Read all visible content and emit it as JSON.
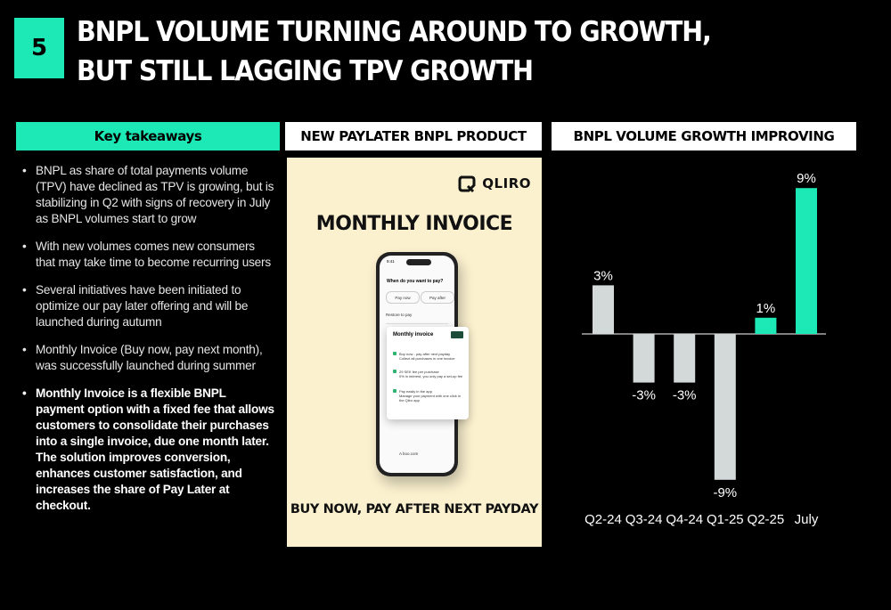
{
  "page": {
    "number": "5",
    "title_line1": "BNPL VOLUME TURNING AROUND TO GROWTH,",
    "title_line2": "BUT STILL LAGGING TPV GROWTH"
  },
  "headers": {
    "key_takeaways": "Key takeaways",
    "product": "NEW PAYLATER BNPL PRODUCT",
    "chart": "BNPL VOLUME GROWTH IMPROVING"
  },
  "takeaways": [
    "BNPL as share of total payments volume (TPV) have declined as TPV is growing, but is stabilizing in Q2 with signs of recovery in July as BNPL volumes start to grow",
    "With new volumes comes new consumers that may take time to become recurring users",
    "Several initiatives have been initiated to optimize our pay later offering and will be launched during autumn",
    "Monthly Invoice (Buy now, pay next month), was successfully launched during summer",
    "Monthly Invoice is a flexible BNPL payment option with a fixed fee that allows customers to consolidate their purchases into a single invoice, due one month later. The solution improves conversion, enhances customer satisfaction, and increases the share of Pay Later at checkout."
  ],
  "product": {
    "logo_text": "QLIRO",
    "title": "MONTHLY INVOICE",
    "tagline": "BUY NOW, PAY AFTER NEXT PAYDAY",
    "phone": {
      "time": "9:41",
      "question": "When do you want to pay?",
      "option_now": "Pay now",
      "option_after": "Pay after",
      "row": "Restore to pay",
      "url": "A boo.com",
      "card_title": "Monthly invoice",
      "features": [
        "Buy now - pay after next payday",
        "29 SEK fee per purchase",
        "Pay easily in the app"
      ],
      "feature_notes": [
        "Collect all purchases in one invoice",
        "0% in interest, you only pay a set-up fee",
        "Manage your payment with one click in the Qliro app"
      ]
    }
  },
  "chart_data": {
    "type": "bar",
    "categories": [
      "Q2-24",
      "Q3-24",
      "Q4-24",
      "Q1-25",
      "Q2-25",
      "July"
    ],
    "values": [
      3,
      -3,
      -3,
      -9,
      1,
      9
    ],
    "value_labels": [
      "3%",
      "-3%",
      "-3%",
      "-9%",
      "1%",
      "9%"
    ],
    "colors": [
      "#d3d8d8",
      "#d3d8d8",
      "#d3d8d8",
      "#d3d8d8",
      "#1de9b6",
      "#1de9b6"
    ],
    "ylim": [
      -9,
      9
    ],
    "title": "BNPL VOLUME GROWTH IMPROVING",
    "xlabel": "",
    "ylabel": "",
    "grid": false,
    "legend": "none"
  }
}
